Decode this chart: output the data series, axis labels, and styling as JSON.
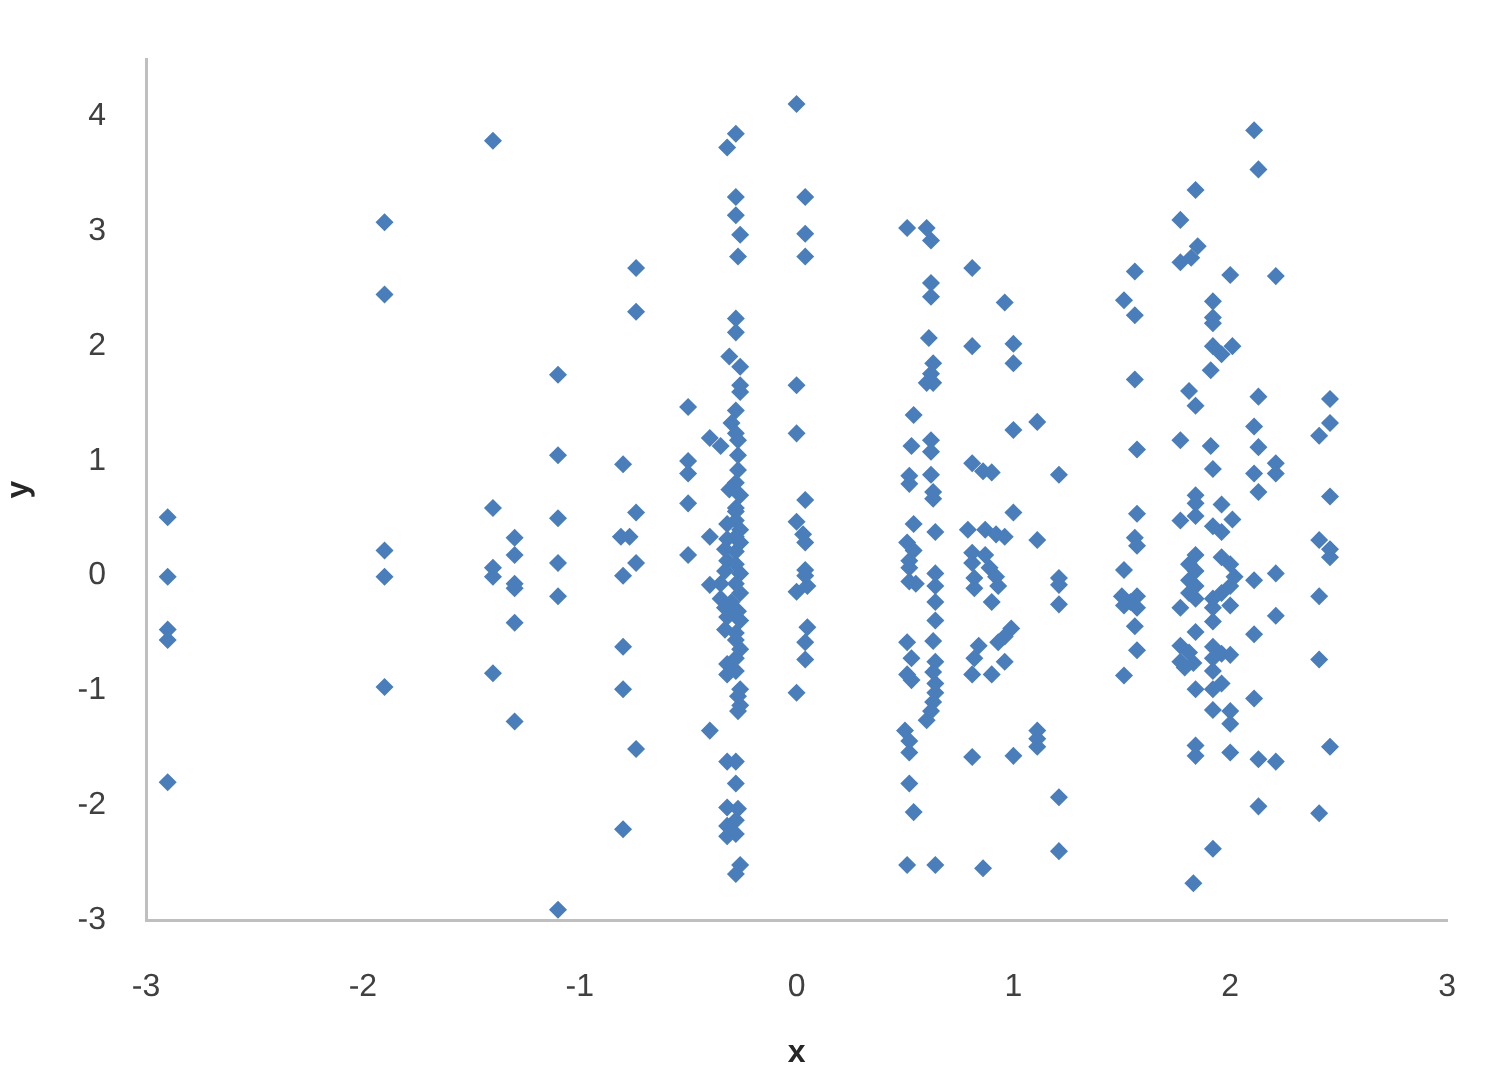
{
  "chart_data": {
    "type": "scatter",
    "xlabel": "x",
    "ylabel": "y",
    "color": "#4a7ebb",
    "marker": "diamond",
    "xlim": [
      -3,
      3
    ],
    "xticks": [
      -3,
      -2,
      -1,
      0,
      1,
      2,
      3
    ],
    "ylim": [
      -3,
      4.5
    ],
    "yticks": [
      -3,
      -2,
      -1,
      0,
      1,
      2,
      3,
      4
    ],
    "x": [
      -2.9,
      -2.9,
      -2.9,
      -2.9,
      -2.9,
      -1.9,
      -1.9,
      -1.9,
      -1.9,
      -1.9,
      -1.4,
      -1.4,
      -1.4,
      -1.4,
      -1.4,
      -1.3,
      -1.3,
      -1.3,
      -1.3,
      -1.3,
      -1.3,
      -1.1,
      -1.1,
      -1.1,
      -1.1,
      -1.1,
      -1.1,
      -0.74,
      -0.74,
      -0.8,
      -0.74,
      -0.81,
      -0.77,
      -0.74,
      -0.8,
      -0.8,
      -0.8,
      -0.74,
      -0.8,
      -0.5,
      -0.5,
      -0.5,
      -0.5,
      -0.4,
      -0.35,
      -0.5,
      -0.4,
      -0.4,
      -0.4,
      -0.28,
      -0.32,
      -0.28,
      -0.28,
      -0.26,
      -0.27,
      -0.28,
      -0.28,
      -0.31,
      -0.26,
      -0.26,
      -0.26,
      -0.28,
      -0.3,
      -0.28,
      -0.27,
      -0.27,
      -0.27,
      -0.28,
      -0.31,
      -0.26,
      -0.28,
      -0.28,
      -0.28,
      -0.32,
      -0.26,
      -0.28,
      -0.32,
      -0.26,
      -0.33,
      -0.28,
      -0.32,
      -0.28,
      -0.33,
      -0.26,
      -0.28,
      -0.35,
      -0.26,
      -0.35,
      -0.3,
      -0.33,
      -0.27,
      -0.32,
      -0.26,
      -0.33,
      -0.28,
      -0.28,
      -0.26,
      -0.28,
      -0.32,
      -0.32,
      -0.28,
      -0.26,
      -0.27,
      -0.26,
      -0.27,
      -0.32,
      -0.28,
      -0.28,
      -0.32,
      -0.27,
      -0.28,
      -0.32,
      -0.28,
      -0.32,
      -0.26,
      -0.28,
      0,
      0.04,
      0.04,
      0.04,
      0,
      0,
      0.04,
      0,
      0.03,
      0.04,
      0.04,
      0.04,
      0,
      0.05,
      0.05,
      0.04,
      0.04,
      0,
      0.51,
      0.54,
      0.53,
      0.52,
      0.52,
      0.54,
      0.51,
      0.54,
      0.52,
      0.52,
      0.52,
      0.55,
      0.51,
      0.53,
      0.51,
      0.53,
      0.5,
      0.52,
      0.52,
      0.52,
      0.54,
      0.51,
      0.6,
      0.62,
      0.62,
      0.62,
      0.61,
      0.63,
      0.62,
      0.6,
      0.63,
      0.62,
      0.62,
      0.62,
      0.63,
      0.63,
      0.64,
      0.64,
      0.64,
      0.64,
      0.64,
      0.63,
      0.64,
      0.63,
      0.64,
      0.64,
      0.63,
      0.62,
      0.6,
      0.64,
      0.81,
      0.81,
      0.96,
      1.0,
      1.0,
      1.0,
      0.81,
      0.86,
      0.9,
      1.0,
      0.79,
      0.87,
      0.92,
      0.96,
      0.81,
      0.87,
      0.81,
      0.89,
      0.82,
      0.92,
      0.82,
      0.93,
      0.9,
      0.99,
      0.96,
      0.93,
      0.84,
      0.82,
      0.81,
      0.9,
      0.96,
      0.81,
      1.0,
      0.86,
      1.11,
      1.21,
      1.11,
      1.21,
      1.21,
      1.21,
      1.11,
      1.11,
      1.11,
      1.21,
      1.21,
      1.56,
      1.51,
      1.56,
      1.56,
      1.57,
      1.57,
      1.56,
      1.57,
      1.51,
      1.5,
      1.54,
      1.57,
      1.51,
      1.57,
      1.56,
      1.57,
      1.51,
      1.77,
      1.84,
      1.77,
      1.82,
      1.85,
      2.0,
      1.92,
      1.92,
      1.92,
      1.92,
      1.96,
      2.01,
      1.91,
      1.81,
      1.84,
      1.77,
      1.91,
      1.92,
      1.84,
      1.84,
      1.96,
      1.77,
      2.01,
      1.84,
      1.92,
      1.96,
      1.84,
      1.81,
      1.84,
      1.81,
      1.84,
      1.81,
      1.84,
      1.77,
      1.96,
      2.0,
      2.02,
      2.0,
      2.0,
      1.96,
      1.92,
      1.92,
      1.92,
      1.84,
      1.77,
      1.81,
      1.77,
      1.83,
      1.79,
      1.92,
      1.96,
      2.0,
      1.92,
      1.92,
      1.96,
      1.92,
      1.84,
      1.92,
      2.0,
      2.0,
      1.84,
      1.84,
      2.0,
      1.92,
      1.83,
      2.11,
      2.13,
      2.21,
      2.13,
      2.11,
      2.13,
      2.11,
      2.21,
      2.21,
      2.13,
      2.11,
      2.21,
      2.21,
      2.11,
      2.11,
      2.13,
      2.21,
      2.13,
      2.46,
      2.46,
      2.41,
      2.46,
      2.41,
      2.46,
      2.46,
      2.41,
      2.41,
      2.46,
      2.41
    ],
    "values": [
      0.51,
      -0.01,
      -0.47,
      -0.56,
      -1.8,
      3.08,
      2.45,
      0.22,
      -0.01,
      -0.97,
      3.79,
      0.59,
      0.07,
      -0.01,
      -0.85,
      0.33,
      0.18,
      -0.07,
      -0.11,
      -0.41,
      -1.27,
      1.75,
      1.05,
      0.5,
      0.11,
      -0.18,
      -2.91,
      2.68,
      2.3,
      0.97,
      0.55,
      0.34,
      0.34,
      0.11,
      0.0,
      -0.62,
      -0.99,
      -1.51,
      -2.21,
      1.47,
      1.0,
      0.89,
      0.63,
      1.2,
      1.13,
      0.18,
      0.34,
      -0.08,
      -1.35,
      3.85,
      3.73,
      3.3,
      3.14,
      2.97,
      2.78,
      2.24,
      2.12,
      1.91,
      1.82,
      1.66,
      1.6,
      1.44,
      1.33,
      1.24,
      1.18,
      1.05,
      0.92,
      0.81,
      0.75,
      0.7,
      0.59,
      0.48,
      0.56,
      0.45,
      0.4,
      0.34,
      0.32,
      0.29,
      0.23,
      0.21,
      0.13,
      0.1,
      0.04,
      0.02,
      -0.07,
      -0.07,
      -0.15,
      -0.2,
      -0.23,
      -0.28,
      -0.31,
      -0.36,
      -0.39,
      -0.47,
      -0.5,
      -0.56,
      -0.64,
      -0.72,
      -0.77,
      -0.86,
      -0.83,
      -0.99,
      -1.05,
      -1.13,
      -1.18,
      -1.62,
      -1.62,
      -1.81,
      -2.02,
      -2.03,
      -2.13,
      -2.18,
      -2.25,
      -2.27,
      -2.52,
      -2.6,
      4.11,
      3.3,
      2.98,
      2.78,
      1.66,
      1.24,
      0.66,
      0.47,
      0.36,
      0.29,
      0.05,
      0,
      -0.14,
      -0.09,
      -0.45,
      -0.58,
      -0.73,
      -1.02,
      3.03,
      1.4,
      1.13,
      0.87,
      0.8,
      0.45,
      0.29,
      0.22,
      0.13,
      0.07,
      -0.05,
      -0.07,
      -0.58,
      -0.72,
      -0.86,
      -0.91,
      -1.35,
      -1.44,
      -1.54,
      -1.81,
      -2.06,
      -2.52,
      3.03,
      2.92,
      2.55,
      2.43,
      2.07,
      1.85,
      1.76,
      1.68,
      1.68,
      1.18,
      1.08,
      0.88,
      0.73,
      0.67,
      0.38,
      0.02,
      -0.09,
      -0.23,
      -0.39,
      -0.57,
      -0.75,
      -0.84,
      -0.94,
      -1.02,
      -1.1,
      -1.18,
      -1.26,
      -2.52,
      2.68,
      2.0,
      2.38,
      2.02,
      1.85,
      1.27,
      0.98,
      0.91,
      0.9,
      0.55,
      0.4,
      0.4,
      0.36,
      0.34,
      0.2,
      0.18,
      0.11,
      0.07,
      -0.02,
      -0.01,
      -0.11,
      -0.09,
      -0.23,
      -0.46,
      -0.53,
      -0.58,
      -0.61,
      -0.72,
      -0.86,
      -0.86,
      -0.75,
      -1.58,
      -1.57,
      -2.55,
      1.34,
      0.88,
      0.31,
      -0.02,
      -0.08,
      -0.25,
      -1.35,
      -1.42,
      -1.49,
      -1.93,
      -2.4,
      2.65,
      2.4,
      2.27,
      1.71,
      1.1,
      0.54,
      0.33,
      0.26,
      0.05,
      -0.18,
      -0.23,
      -0.18,
      -0.26,
      -0.28,
      -0.44,
      -0.65,
      -0.87,
      3.1,
      3.36,
      2.73,
      2.77,
      2.87,
      2.62,
      2.39,
      2.25,
      2.2,
      2.0,
      1.93,
      2.0,
      1.79,
      1.61,
      1.48,
      1.18,
      1.13,
      0.93,
      0.7,
      0.63,
      0.62,
      0.48,
      0.49,
      0.52,
      0.43,
      0.38,
      0.18,
      0.1,
      0.04,
      -0.04,
      -0.09,
      -0.15,
      -0.2,
      -0.28,
      0.16,
      0.1,
      -0.01,
      -0.09,
      -0.26,
      -0.15,
      -0.2,
      -0.28,
      -0.4,
      -0.49,
      -0.61,
      -0.67,
      -0.75,
      -0.76,
      -0.8,
      -0.62,
      -0.68,
      -0.69,
      -0.72,
      -0.83,
      -0.94,
      -0.99,
      -0.99,
      -1.17,
      -1.18,
      -1.29,
      -1.48,
      -1.57,
      -1.54,
      -2.38,
      -2.68,
      3.88,
      3.54,
      2.61,
      1.56,
      1.3,
      1.12,
      0.89,
      0.98,
      0.89,
      0.73,
      -0.04,
      0.02,
      -0.35,
      -0.51,
      -1.07,
      -1.6,
      -1.62,
      -2.01,
      1.54,
      1.33,
      1.22,
      0.69,
      0.31,
      0.23,
      0.16,
      -0.18,
      -0.73,
      -1.49,
      -2.07
    ]
  }
}
